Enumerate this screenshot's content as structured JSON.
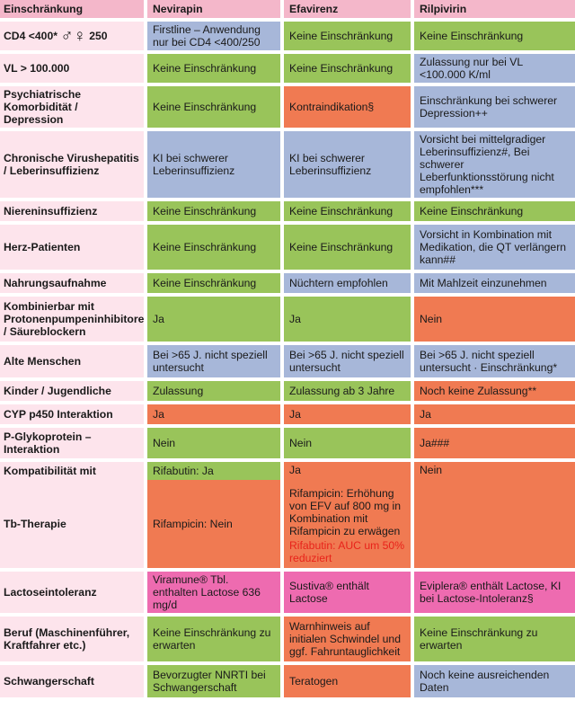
{
  "headers": [
    "Einschränkung",
    "Nevirapin",
    "Efavirenz",
    "Rilpivirin"
  ],
  "cd4": {
    "label": "CD4 <400*",
    "symbols": "♂♀",
    "suffix": "250",
    "nevirapin": "Firstline – Anwendung nur bei CD4 <400/250",
    "efavirenz": "Keine Einschränkung",
    "rilpivirin": "Keine Einschränkung"
  },
  "vl": {
    "label": "VL > 100.000",
    "nevirapin": "Keine Einschränkung",
    "efavirenz": "Keine Einschränkung",
    "rilpivirin": "Zulassung nur bei VL <100.000 K/ml"
  },
  "psych": {
    "label": "Psychiatrische Komorbidität / Depression",
    "nevirapin": "Keine Einschränkung",
    "efavirenz": "Kontraindikation§",
    "rilpivirin": "Einschränkung bei schwerer Depression++"
  },
  "hep": {
    "label": "Chronische Virushepatitis / Leberinsuffizienz",
    "nevirapin": "KI bei schwerer Leberinsuffizienz",
    "efavirenz": "KI bei schwerer Leberinsuffizienz",
    "rilpivirin": "Vorsicht bei mittelgradiger Leberinsuffizienz#, Bei schwerer Leberfunktionsstörung nicht empfohlen***"
  },
  "niere": {
    "label": "Niereninsuffizienz",
    "nevirapin": "Keine Einschränkung",
    "efavirenz": "Keine Einschränkung",
    "rilpivirin": "Keine Einschränkung"
  },
  "herz": {
    "label": "Herz-Patienten",
    "nevirapin": "Keine Einschränkung",
    "efavirenz": "Keine Einschränkung",
    "rilpivirin": "Vorsicht in Kombination mit Medikation, die QT verlängern kann##"
  },
  "nahrung": {
    "label": "Nahrungsaufnahme",
    "nevirapin": "Keine Einschränkung",
    "efavirenz": "Nüchtern empfohlen",
    "rilpivirin": "Mit Mahlzeit einzunehmen"
  },
  "ppi": {
    "label": "Kombinierbar mit Protonenpumpeninhibitoren / Säureblockern",
    "nevirapin": "Ja",
    "efavirenz": "Ja",
    "rilpivirin": "Nein"
  },
  "alte": {
    "label": "Alte Menschen",
    "nevirapin": "Bei >65 J. nicht speziell untersucht",
    "efavirenz": "Bei >65 J. nicht speziell untersucht",
    "rilpivirin": "Bei >65 J. nicht speziell untersucht · Einschränkung*"
  },
  "kinder": {
    "label": "Kinder / Jugendliche",
    "nevirapin": "Zulassung",
    "efavirenz": "Zulassung ab 3 Jahre",
    "rilpivirin": "Noch keine Zulassung**"
  },
  "cyp": {
    "label": "CYP p450 Interaktion",
    "nevirapin": "Ja",
    "efavirenz": "Ja",
    "rilpivirin": "Ja"
  },
  "pgp": {
    "label": "P-Glykoprotein – Interaktion",
    "nevirapin": "Nein",
    "efavirenz": "Nein",
    "rilpivirin": "Ja###"
  },
  "tb": {
    "label_top": "Kompatibilität mit",
    "label_bottom": "Tb-Therapie",
    "nevirapin_top": "Rifabutin: Ja",
    "nevirapin_bottom": "Rifampicin: Nein",
    "efavirenz_top": "Ja",
    "efavirenz_main": "Rifampicin: Erhöhung von EFV auf 800 mg in Kombination mit Rifampicin zu erwägen",
    "efavirenz_red": "Rifabutin: AUC um 50% reduziert",
    "rilpivirin": "Nein"
  },
  "lactose": {
    "label": "Lactoseintoleranz",
    "nevirapin": "Viramune® Tbl. enthalten Lactose 636 mg/d",
    "efavirenz": "Sustiva® enthält Lactose",
    "rilpivirin": "Eviplera® enthält Lactose, KI bei Lactose-Intoleranz§"
  },
  "beruf": {
    "label": "Beruf (Maschinenführer, Kraftfahrer etc.)",
    "nevirapin": "Keine Einschränkung zu erwarten",
    "efavirenz": "Warnhinweis auf initialen Schwindel und ggf. Fahruntauglichkeit",
    "rilpivirin": "Keine Einschränkung zu erwarten"
  },
  "schwanger": {
    "label": "Schwangerschaft",
    "nevirapin": "Bevorzugter NNRTI bei Schwangerschaft",
    "efavirenz": "Teratogen",
    "rilpivirin": "Noch keine ausreichenden Daten"
  },
  "colors": {
    "green": "#99c45a",
    "blue": "#a7b7d9",
    "orange": "#f07a52",
    "pink": "#ee6bb0",
    "label_bg": "#fde4ec",
    "header_bg": "#f4b7ca",
    "red_text": "#e8231a"
  }
}
